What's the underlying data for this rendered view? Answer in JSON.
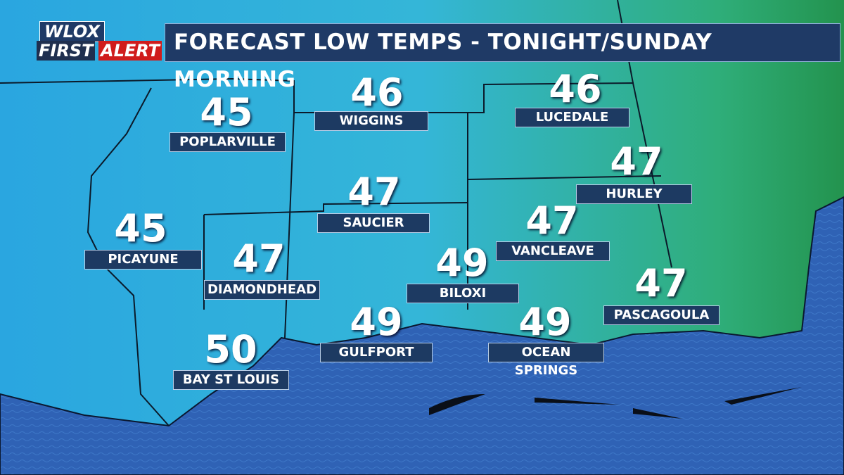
{
  "logo": {
    "station": "WLOX",
    "first": "FIRST",
    "alert": "ALERT"
  },
  "title": "FORECAST LOW TEMPS - TONIGHT/SUNDAY MORNING",
  "cities": [
    {
      "name": "POPLARVILLE",
      "temp": 45
    },
    {
      "name": "WIGGINS",
      "temp": 46
    },
    {
      "name": "LUCEDALE",
      "temp": 46
    },
    {
      "name": "HURLEY",
      "temp": 47
    },
    {
      "name": "SAUCIER",
      "temp": 47
    },
    {
      "name": "PICAYUNE",
      "temp": 45
    },
    {
      "name": "DIAMONDHEAD",
      "temp": 47
    },
    {
      "name": "VANCLEAVE",
      "temp": 47
    },
    {
      "name": "BILOXI",
      "temp": 49
    },
    {
      "name": "PASCAGOULA",
      "temp": 47
    },
    {
      "name": "GULFPORT",
      "temp": 49
    },
    {
      "name": "OCEAN SPRINGS",
      "temp": 49
    },
    {
      "name": "BAY ST LOUIS",
      "temp": 50
    }
  ]
}
